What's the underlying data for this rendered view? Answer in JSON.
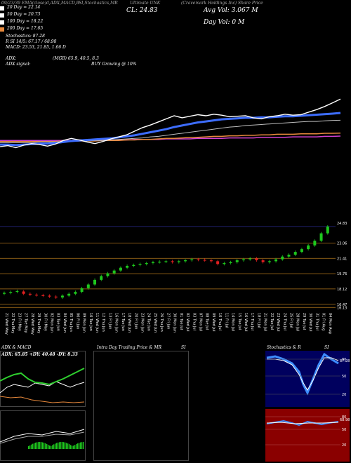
{
  "header": {
    "line1_left": "09/23/39 EMA(close)d,ADX,MACD,B",
    "line1_mid": "SI,Stochastics,MR",
    "line1_title": "Ultimate UNK",
    "line1_right": "(Cravemark Holdings Inc) Share Price",
    "ema20": "20 Day = 22.14",
    "ema50": "50 Day = 20.73",
    "ema100": "100 Day = 18.22",
    "ema200": "200 Day = 17.65",
    "close": "CL: 24.83",
    "avg_vol": "Avg Vol: 3.067 M",
    "day_vol": "Day Vol: 0  M",
    "stochastics": "Stochastics: 87.28",
    "rsi": "R           SI 14/5: 67.17 / 68.98",
    "macd": "MACD: 23.53,  21.85,  1.66  D",
    "adx_label": "ADX:",
    "adx_value": "(MGB) 65.9,  40.5,  8.3",
    "adx_signal_label": "ADX  signal:",
    "adx_signal_value": "BUY Growing @ 10%"
  },
  "chart_data": [
    {
      "type": "line",
      "title": "EMA(close) 20, 50, 100, 200",
      "series": [
        {
          "name": "Price",
          "color": "#ffffff",
          "values": [
            15.6,
            15.8,
            15.4,
            15.9,
            16.2,
            16.0,
            15.7,
            16.1,
            16.8,
            17.2,
            16.9,
            16.5,
            16.2,
            16.6,
            17.1,
            17.5,
            17.9,
            18.6,
            19.3,
            19.8,
            20.4,
            21.0,
            21.6,
            21.2,
            21.5,
            21.8,
            21.6,
            21.9,
            21.7,
            21.4,
            21.5,
            21.6,
            21.2,
            21.0,
            21.4,
            21.6,
            21.9,
            21.7,
            21.8,
            22.3,
            22.8,
            23.4,
            24.1,
            24.83
          ]
        },
        {
          "name": "20 Day",
          "color": "#3d6dff",
          "values": [
            16.0,
            16.0,
            15.9,
            16.0,
            16.1,
            16.2,
            16.2,
            16.3,
            16.5,
            16.7,
            16.8,
            16.9,
            17.0,
            17.1,
            17.2,
            17.4,
            17.6,
            17.8,
            18.1,
            18.4,
            18.7,
            19.0,
            19.4,
            19.7,
            20.0,
            20.3,
            20.5,
            20.7,
            20.9,
            21.0,
            21.1,
            21.2,
            21.2,
            21.3,
            21.3,
            21.4,
            21.5,
            21.5,
            21.6,
            21.7,
            21.8,
            21.9,
            22.0,
            22.14
          ]
        },
        {
          "name": "50 Day",
          "color": "#bdbdbd",
          "values": [
            16.4,
            16.4,
            16.4,
            16.4,
            16.4,
            16.5,
            16.5,
            16.5,
            16.6,
            16.6,
            16.7,
            16.7,
            16.8,
            16.8,
            16.9,
            17.0,
            17.1,
            17.2,
            17.3,
            17.5,
            17.6,
            17.8,
            18.0,
            18.2,
            18.4,
            18.6,
            18.8,
            19.0,
            19.2,
            19.4,
            19.5,
            19.7,
            19.8,
            19.9,
            20.0,
            20.1,
            20.2,
            20.3,
            20.4,
            20.5,
            20.5,
            20.6,
            20.7,
            20.73
          ]
        },
        {
          "name": "100 Day",
          "color": "#e8893c",
          "values": [
            16.6,
            16.6,
            16.6,
            16.6,
            16.6,
            16.6,
            16.6,
            16.6,
            16.7,
            16.7,
            16.7,
            16.7,
            16.7,
            16.8,
            16.8,
            16.8,
            16.9,
            16.9,
            17.0,
            17.0,
            17.1,
            17.2,
            17.2,
            17.3,
            17.4,
            17.4,
            17.5,
            17.6,
            17.6,
            17.7,
            17.7,
            17.8,
            17.8,
            17.9,
            17.9,
            18.0,
            18.0,
            18.0,
            18.1,
            18.1,
            18.1,
            18.2,
            18.2,
            18.22
          ]
        },
        {
          "name": "200 Day",
          "color": "#d040d0",
          "values": [
            16.8,
            16.8,
            16.8,
            16.8,
            16.8,
            16.8,
            16.8,
            16.8,
            16.8,
            16.8,
            16.9,
            16.9,
            16.9,
            16.9,
            16.9,
            16.9,
            16.9,
            17.0,
            17.0,
            17.0,
            17.0,
            17.1,
            17.1,
            17.1,
            17.1,
            17.2,
            17.2,
            17.2,
            17.2,
            17.3,
            17.3,
            17.3,
            17.3,
            17.4,
            17.4,
            17.4,
            17.4,
            17.5,
            17.5,
            17.5,
            17.5,
            17.6,
            17.6,
            17.65
          ]
        }
      ]
    },
    {
      "type": "bar",
      "title": "Candlestick",
      "y_ticks": [
        "23.06",
        "21.41",
        "19.76",
        "18.12",
        "16.47",
        "16.13"
      ],
      "dates": [
        "21 Wed May",
        "22 Thu May",
        "23 Fri May",
        "27 Tue May",
        "28 Wed May",
        "29 Thu May",
        "30 Fri May",
        "02 Mon Jun",
        "03 Tue Jun",
        "04 Wed Jun",
        "05 Thu Jun",
        "06 Fri Jun",
        "09 Mon Jun",
        "10 Tue Jun",
        "11 Wed Jun",
        "12 Thu Jun",
        "13 Fri Jun",
        "16 Mon Jun",
        "17 Tue Jun",
        "18 Wed Jun",
        "20 Fri Jun",
        "23 Mon Jun",
        "24 Tue Jun",
        "25 Wed Jun",
        "26 Thu Jun",
        "27 Fri Jun",
        "30 Mon Jun",
        "01 Tue Jul",
        "02 Wed Jul",
        "03 Thu Jul",
        "07 Mon Jul",
        "08 Tue Jul",
        "09 Wed Jul",
        "10 Thu Jul",
        "11 Fri Jul",
        "14 Mon Jul",
        "15 Tue Jul",
        "16 Wed Jul",
        "17 Thu Jul",
        "18 Fri Jul",
        "21 Mon Jul",
        "22 Tue Jul",
        "23 Wed Jul",
        "24 Thu Jul",
        "25 Fri Jul",
        "28 Mon Jul",
        "29 Tue Jul",
        "30 Wed Jul",
        "31 Thu Jul",
        "01 Fri Aug",
        "04 Mon Aug"
      ],
      "open": [
        17.6,
        17.7,
        17.8,
        17.85,
        17.6,
        17.5,
        17.45,
        17.4,
        17.3,
        17.2,
        17.4,
        17.6,
        17.8,
        18.2,
        18.6,
        19.1,
        19.5,
        19.8,
        20.1,
        20.4,
        20.6,
        20.7,
        20.8,
        20.9,
        21.0,
        21.05,
        21.1,
        21.0,
        21.1,
        21.2,
        21.3,
        21.25,
        21.2,
        21.1,
        20.8,
        20.9,
        21.0,
        21.2,
        21.3,
        21.4,
        21.2,
        21.0,
        21.1,
        21.3,
        21.6,
        21.8,
        22.1,
        22.4,
        22.8,
        23.3,
        24.1
      ],
      "close": [
        17.7,
        17.8,
        17.9,
        17.6,
        17.5,
        17.45,
        17.4,
        17.3,
        17.2,
        17.4,
        17.6,
        17.8,
        18.2,
        18.6,
        19.1,
        19.5,
        19.8,
        20.1,
        20.4,
        20.6,
        20.7,
        20.8,
        20.9,
        21.0,
        21.05,
        21.1,
        21.0,
        21.1,
        21.2,
        21.3,
        21.25,
        21.2,
        21.1,
        20.8,
        20.9,
        21.0,
        21.2,
        21.3,
        21.4,
        21.2,
        21.0,
        21.1,
        21.3,
        21.6,
        21.8,
        22.1,
        22.4,
        22.8,
        23.3,
        24.1,
        24.83
      ]
    },
    {
      "type": "line",
      "title": "ADX  & MACD",
      "panel_labels": [
        "ADX: 65.85  +DY: 40.48  -DY: 8.33"
      ]
    },
    {
      "type": "scatter",
      "title": "Intra  Day Trading Price  & MR",
      "panel_suffix": "SI"
    },
    {
      "type": "line",
      "title": "Stochastics & R",
      "panel_suffix": "SI",
      "stoch_ticks": [
        "80",
        "50",
        "20"
      ],
      "rsi_ticks": [
        "80",
        "50",
        "20"
      ],
      "stoch_right_value": "87.28",
      "rsi_right_value": "68.98"
    }
  ]
}
